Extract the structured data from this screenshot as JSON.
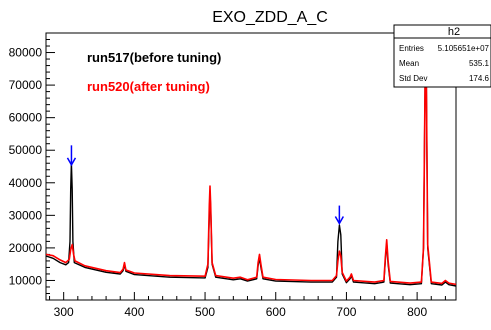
{
  "chart_data": {
    "type": "line",
    "title": "EXO_ZDD_A_C",
    "xlim": [
      275,
      855
    ],
    "ylim": [
      4000,
      86000
    ],
    "x_ticks": [
      300,
      400,
      500,
      600,
      700,
      800
    ],
    "y_ticks": [
      10000,
      20000,
      30000,
      40000,
      50000,
      60000,
      70000,
      80000
    ],
    "grid": false,
    "legend_position": "top-left",
    "series": [
      {
        "name": "run517(before tuning)",
        "color": "#000000",
        "points": [
          [
            275,
            17500
          ],
          [
            285,
            16800
          ],
          [
            295,
            15500
          ],
          [
            303,
            14800
          ],
          [
            307,
            15500
          ],
          [
            309,
            22000
          ],
          [
            310,
            38000
          ],
          [
            311,
            46000
          ],
          [
            312,
            38000
          ],
          [
            313,
            22000
          ],
          [
            315,
            15500
          ],
          [
            330,
            14000
          ],
          [
            360,
            12500
          ],
          [
            380,
            12000
          ],
          [
            384,
            13000
          ],
          [
            386,
            15000
          ],
          [
            388,
            12800
          ],
          [
            400,
            11800
          ],
          [
            450,
            11000
          ],
          [
            500,
            10800
          ],
          [
            504,
            14000
          ],
          [
            506,
            30000
          ],
          [
            507,
            37000
          ],
          [
            508,
            32000
          ],
          [
            510,
            15000
          ],
          [
            515,
            11000
          ],
          [
            540,
            10200
          ],
          [
            550,
            10500
          ],
          [
            560,
            9800
          ],
          [
            573,
            10500
          ],
          [
            575,
            14500
          ],
          [
            577,
            17000
          ],
          [
            579,
            14000
          ],
          [
            582,
            10500
          ],
          [
            600,
            9800
          ],
          [
            650,
            9500
          ],
          [
            680,
            9500
          ],
          [
            686,
            11000
          ],
          [
            688,
            22000
          ],
          [
            690,
            27000
          ],
          [
            692,
            24000
          ],
          [
            694,
            12000
          ],
          [
            700,
            9300
          ],
          [
            705,
            10500
          ],
          [
            707,
            11500
          ],
          [
            710,
            9500
          ],
          [
            740,
            9000
          ],
          [
            753,
            9500
          ],
          [
            755,
            16000
          ],
          [
            757,
            21500
          ],
          [
            759,
            15000
          ],
          [
            762,
            9200
          ],
          [
            790,
            8700
          ],
          [
            806,
            9000
          ],
          [
            809,
            20000
          ],
          [
            811,
            64000
          ],
          [
            812,
            86000
          ],
          [
            813,
            72000
          ],
          [
            815,
            20000
          ],
          [
            820,
            9000
          ],
          [
            835,
            8600
          ],
          [
            840,
            9500
          ],
          [
            845,
            8700
          ],
          [
            855,
            8300
          ]
        ]
      },
      {
        "name": "run520(after tuning)",
        "color": "#ff0000",
        "points": [
          [
            275,
            18000
          ],
          [
            285,
            17600
          ],
          [
            295,
            16300
          ],
          [
            303,
            15500
          ],
          [
            308,
            16500
          ],
          [
            310,
            19500
          ],
          [
            312,
            21000
          ],
          [
            314,
            18000
          ],
          [
            316,
            16000
          ],
          [
            330,
            14500
          ],
          [
            360,
            13000
          ],
          [
            380,
            12400
          ],
          [
            384,
            13500
          ],
          [
            386,
            15500
          ],
          [
            388,
            13200
          ],
          [
            400,
            12300
          ],
          [
            450,
            11500
          ],
          [
            500,
            11300
          ],
          [
            504,
            15000
          ],
          [
            506,
            33000
          ],
          [
            507,
            39000
          ],
          [
            508,
            33000
          ],
          [
            510,
            15500
          ],
          [
            515,
            11500
          ],
          [
            540,
            10700
          ],
          [
            550,
            11000
          ],
          [
            560,
            10200
          ],
          [
            573,
            11000
          ],
          [
            575,
            15500
          ],
          [
            577,
            18000
          ],
          [
            579,
            15000
          ],
          [
            582,
            11000
          ],
          [
            600,
            10300
          ],
          [
            650,
            10000
          ],
          [
            680,
            10000
          ],
          [
            686,
            11500
          ],
          [
            688,
            16000
          ],
          [
            690,
            19000
          ],
          [
            692,
            17500
          ],
          [
            694,
            12500
          ],
          [
            700,
            9800
          ],
          [
            705,
            11000
          ],
          [
            707,
            12000
          ],
          [
            710,
            10000
          ],
          [
            740,
            9500
          ],
          [
            753,
            10000
          ],
          [
            755,
            17000
          ],
          [
            757,
            22500
          ],
          [
            759,
            16000
          ],
          [
            762,
            9700
          ],
          [
            790,
            9200
          ],
          [
            806,
            9500
          ],
          [
            809,
            20000
          ],
          [
            811,
            65000
          ],
          [
            812,
            86000
          ],
          [
            813,
            73000
          ],
          [
            815,
            21000
          ],
          [
            820,
            9500
          ],
          [
            835,
            9100
          ],
          [
            840,
            10000
          ],
          [
            845,
            9200
          ],
          [
            855,
            8800
          ]
        ]
      }
    ],
    "annotations": [
      {
        "type": "arrow",
        "x": 311,
        "y_top": 51500,
        "y_bottom": 45500,
        "color": "#0000ff"
      },
      {
        "type": "arrow",
        "x": 690,
        "y_top": 33000,
        "y_bottom": 27500,
        "color": "#0000ff"
      }
    ]
  },
  "stats_box": {
    "name": "h2",
    "rows": [
      {
        "label": "Entries",
        "value": "5.105651e+07"
      },
      {
        "label": "Mean",
        "value": "535.1"
      },
      {
        "label": "Std Dev",
        "value": "174.6"
      }
    ]
  }
}
